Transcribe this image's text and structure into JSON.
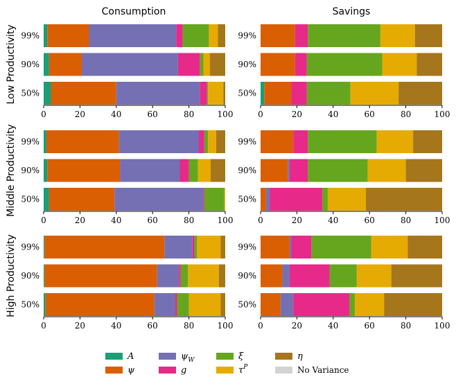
{
  "chart_data": {
    "type": "bar",
    "orientation": "horizontal-stacked",
    "column_titles": [
      "Consumption",
      "Savings"
    ],
    "row_titles": [
      "Low Productivity",
      "Middle Productivity",
      "High Productivity"
    ],
    "categories": [
      "99%",
      "90%",
      "50%"
    ],
    "xlim": [
      0,
      100
    ],
    "xticks": [
      "0",
      "20",
      "40",
      "60",
      "80",
      "100"
    ],
    "components": [
      {
        "key": "A",
        "label": "A",
        "color": "#1b9e77"
      },
      {
        "key": "psi",
        "label": "ψ",
        "color": "#d95f02"
      },
      {
        "key": "psiW",
        "label": "ψ_W",
        "color": "#7570b3"
      },
      {
        "key": "g",
        "label": "g",
        "color": "#e7298a"
      },
      {
        "key": "xi",
        "label": "ξ",
        "color": "#66a61e"
      },
      {
        "key": "tauP",
        "label": "τ^P",
        "color": "#e6ab02"
      },
      {
        "key": "eta",
        "label": "η",
        "color": "#a6761d"
      },
      {
        "key": "nv",
        "label": "No Variance",
        "color": "#d3d3d3"
      }
    ],
    "panels": [
      {
        "row": "Low Productivity",
        "column": "Consumption",
        "bars": [
          {
            "category": "99%",
            "values": [
              2,
              23,
              48,
              3.5,
              14.5,
              5,
              4
            ]
          },
          {
            "category": "90%",
            "values": [
              3,
              18,
              53,
              12,
              2,
              3.5,
              8.5
            ]
          },
          {
            "category": "50%",
            "values": [
              4,
              36,
              46,
              4,
              0.5,
              8.5,
              1
            ]
          }
        ]
      },
      {
        "row": "Low Productivity",
        "column": "Savings",
        "bars": [
          {
            "category": "99%",
            "values": [
              0,
              19,
              0,
              7,
              40,
              19,
              15
            ]
          },
          {
            "category": "90%",
            "values": [
              0,
              19,
              0,
              6.5,
              41.5,
              19,
              14
            ]
          },
          {
            "category": "50%",
            "values": [
              2,
              15,
              0,
              8.5,
              24,
              26.5,
              24
            ]
          }
        ]
      },
      {
        "row": "Middle Productivity",
        "column": "Consumption",
        "bars": [
          {
            "category": "99%",
            "values": [
              1.5,
              40,
              44,
              3,
              2,
              4.5,
              5
            ]
          },
          {
            "category": "90%",
            "values": [
              2,
              40,
              33,
              5,
              5,
              7,
              8
            ]
          },
          {
            "category": "50%",
            "values": [
              3,
              36,
              49,
              0.5,
              11,
              0.5,
              0
            ]
          }
        ]
      },
      {
        "row": "Middle Productivity",
        "column": "Savings",
        "bars": [
          {
            "category": "99%",
            "values": [
              0,
              18,
              0,
              8,
              38,
              20,
              16
            ]
          },
          {
            "category": "90%",
            "values": [
              0,
              15,
              1,
              10,
              33,
              21,
              20
            ]
          },
          {
            "category": "50%",
            "values": [
              0,
              3,
              2,
              29,
              3,
              21,
              42
            ]
          }
        ]
      },
      {
        "row": "High Productivity",
        "column": "Consumption",
        "bars": [
          {
            "category": "99%",
            "values": [
              0.5,
              66,
              15.5,
              1,
              1.5,
              13,
              2.5
            ]
          },
          {
            "category": "90%",
            "values": [
              0.5,
              62,
              12,
              1,
              4,
              17,
              3.5
            ]
          },
          {
            "category": "50%",
            "values": [
              1,
              60,
              11.5,
              1,
              6.5,
              17.5,
              2.5
            ]
          }
        ]
      },
      {
        "row": "High Productivity",
        "column": "Savings",
        "bars": [
          {
            "category": "99%",
            "values": [
              0,
              16,
              1,
              11,
              33,
              20,
              19
            ]
          },
          {
            "category": "90%",
            "values": [
              0,
              12,
              4,
              22,
              15,
              19,
              28
            ]
          },
          {
            "category": "50%",
            "values": [
              0,
              11,
              7,
              31,
              3,
              16,
              32
            ]
          }
        ]
      }
    ]
  }
}
